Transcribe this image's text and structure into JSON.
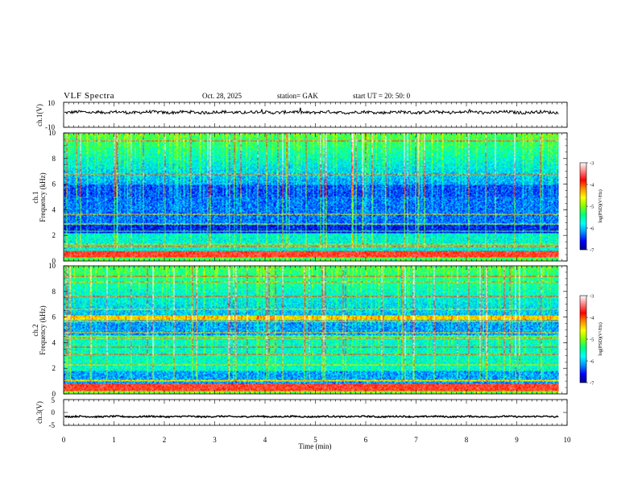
{
  "header": {
    "title": "VLF  Spectra",
    "date": "Oct. 28,  2025",
    "station": "station= GAK",
    "start_ut": "start  UT  =    20: 50: 0"
  },
  "chart_data": [
    {
      "id": "ch1-waveform",
      "type": "line",
      "ylabel": "ch.1(V)",
      "ylim": [
        -10,
        10
      ],
      "yticks": [
        "10",
        "-10"
      ],
      "baseline_v": 2,
      "noise_v": 1.2,
      "color": "#000000"
    },
    {
      "id": "ch1-spectrogram",
      "type": "heatmap",
      "ylabel_line1": "ch.1",
      "ylabel_line2": "Frequency  (kHz)",
      "ylim": [
        0,
        10
      ],
      "yticks": [
        "0",
        "2",
        "4",
        "6",
        "8",
        "10"
      ],
      "colorbar": {
        "label": "log(PSD)(V²/Hz)",
        "range": [
          -7,
          -3
        ],
        "ticks": [
          "-3",
          "-4",
          "-5",
          "-6",
          "-7"
        ],
        "colors": [
          "#000090",
          "#0000ff",
          "#0090ff",
          "#00ffff",
          "#00ff80",
          "#80ff00",
          "#ffff00",
          "#ff9000",
          "#ff0000",
          "#ff8080",
          "#ffffff"
        ]
      }
    },
    {
      "id": "ch2-spectrogram",
      "type": "heatmap",
      "ylabel_line1": "ch.2",
      "ylabel_line2": "Frequency  (kHz)",
      "ylim": [
        0,
        10
      ],
      "yticks": [
        "0",
        "2",
        "4",
        "6",
        "8",
        "10"
      ],
      "colorbar": {
        "label": "log(PSD)(V²/Hz)",
        "range": [
          -7,
          -3
        ],
        "ticks": [
          "-3",
          "-4",
          "-5",
          "-6",
          "-7"
        ],
        "colors": [
          "#000090",
          "#0000ff",
          "#0090ff",
          "#00ffff",
          "#00ff80",
          "#80ff00",
          "#ffff00",
          "#ff9000",
          "#ff0000",
          "#ff8080",
          "#ffffff"
        ]
      }
    },
    {
      "id": "ch3-waveform",
      "type": "line",
      "ylabel": "ch.3(V)",
      "ylim": [
        -5,
        5
      ],
      "yticks": [
        "5",
        "0",
        "-5"
      ],
      "baseline_v": -1.6,
      "noise_v": 0.3,
      "color": "#000000"
    }
  ],
  "xaxis": {
    "label": "Time  (min)",
    "range": [
      0,
      10
    ],
    "data_end_min": 9.83,
    "ticks": [
      "0",
      "1",
      "2",
      "3",
      "4",
      "5",
      "6",
      "7",
      "8",
      "9",
      "10"
    ]
  }
}
